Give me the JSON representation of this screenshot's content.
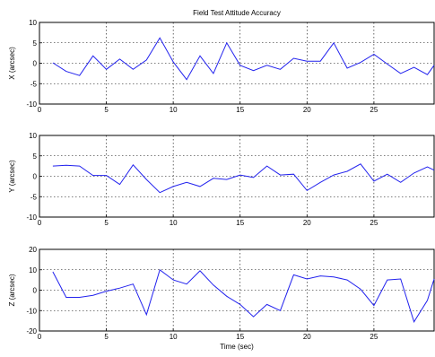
{
  "chart_data": {
    "type": "line",
    "title": "Field Test Attitude Accuracy",
    "xlabel": "Time  (sec)",
    "colors": {
      "line": "#2222ee"
    },
    "grid": true,
    "subplots": [
      {
        "ylabel": "X  (arcsec)",
        "xlim": [
          0,
          29.5
        ],
        "ylim": [
          -10,
          10
        ],
        "xticks": [
          "0",
          "5",
          "10",
          "15",
          "20",
          "25"
        ],
        "yticks": [
          "10",
          "5",
          "0",
          "-5",
          "-10"
        ],
        "ytick_values": [
          10,
          5,
          0,
          -5,
          -10
        ],
        "x": [
          1,
          2,
          3,
          4,
          5,
          6,
          7,
          8,
          9,
          10,
          11,
          12,
          13,
          14,
          15,
          16,
          17,
          18,
          19,
          20,
          21,
          22,
          23,
          24,
          25,
          26,
          27,
          28,
          29,
          29.5
        ],
        "y": [
          0.1,
          -2.0,
          -3.0,
          1.8,
          -1.5,
          1.0,
          -1.5,
          0.8,
          6.2,
          0.3,
          -4.0,
          1.8,
          -2.5,
          5.0,
          -0.5,
          -1.8,
          -0.5,
          -1.5,
          1.2,
          0.5,
          0.5,
          5.0,
          -1.2,
          0.2,
          2.2,
          -0.2,
          -2.5,
          -1.0,
          -2.8,
          -0.5
        ]
      },
      {
        "ylabel": "Y  (arcsec)",
        "xlim": [
          0,
          29.5
        ],
        "ylim": [
          -10,
          10
        ],
        "xticks": [
          "0",
          "5",
          "10",
          "15",
          "20",
          "25"
        ],
        "yticks": [
          "10",
          "5",
          "0",
          "-5",
          "-10"
        ],
        "ytick_values": [
          10,
          5,
          0,
          -5,
          -10
        ],
        "x": [
          1,
          2,
          3,
          4,
          5,
          6,
          7,
          8,
          9,
          10,
          11,
          12,
          13,
          14,
          15,
          16,
          17,
          18,
          19,
          20,
          21,
          22,
          23,
          24,
          25,
          26,
          27,
          28,
          29,
          29.5
        ],
        "y": [
          2.5,
          2.7,
          2.5,
          0.2,
          0.2,
          -2.0,
          2.8,
          -0.8,
          -4.0,
          -2.5,
          -1.5,
          -2.5,
          -0.5,
          -0.8,
          0.3,
          -0.3,
          2.5,
          0.3,
          0.5,
          -3.5,
          -1.5,
          0.3,
          1.2,
          3.0,
          -1.2,
          0.5,
          -1.5,
          0.8,
          2.3,
          1.5
        ]
      },
      {
        "ylabel": "Z  (arcsec)",
        "xlim": [
          0,
          29.5
        ],
        "ylim": [
          -20,
          20
        ],
        "xticks": [
          "0",
          "5",
          "10",
          "15",
          "20",
          "25"
        ],
        "yticks": [
          "20",
          "10",
          "0",
          "-10",
          "-20"
        ],
        "ytick_values": [
          20,
          10,
          0,
          -10,
          -20
        ],
        "x": [
          1,
          2,
          3,
          4,
          5,
          6,
          7,
          8,
          9,
          10,
          11,
          12,
          13,
          14,
          15,
          16,
          17,
          18,
          19,
          20,
          21,
          22,
          23,
          24,
          25,
          26,
          27,
          28,
          29,
          29.5
        ],
        "y": [
          9.0,
          -3.5,
          -3.5,
          -2.5,
          -0.5,
          1.0,
          3.0,
          -12.0,
          10.0,
          5.0,
          3.0,
          9.5,
          2.5,
          -3.0,
          -7.0,
          -13.0,
          -7.0,
          -10.0,
          7.5,
          5.5,
          7.0,
          6.5,
          5.0,
          0.5,
          -7.5,
          5.0,
          5.5,
          -15.5,
          -5.0,
          5.5
        ]
      }
    ]
  }
}
